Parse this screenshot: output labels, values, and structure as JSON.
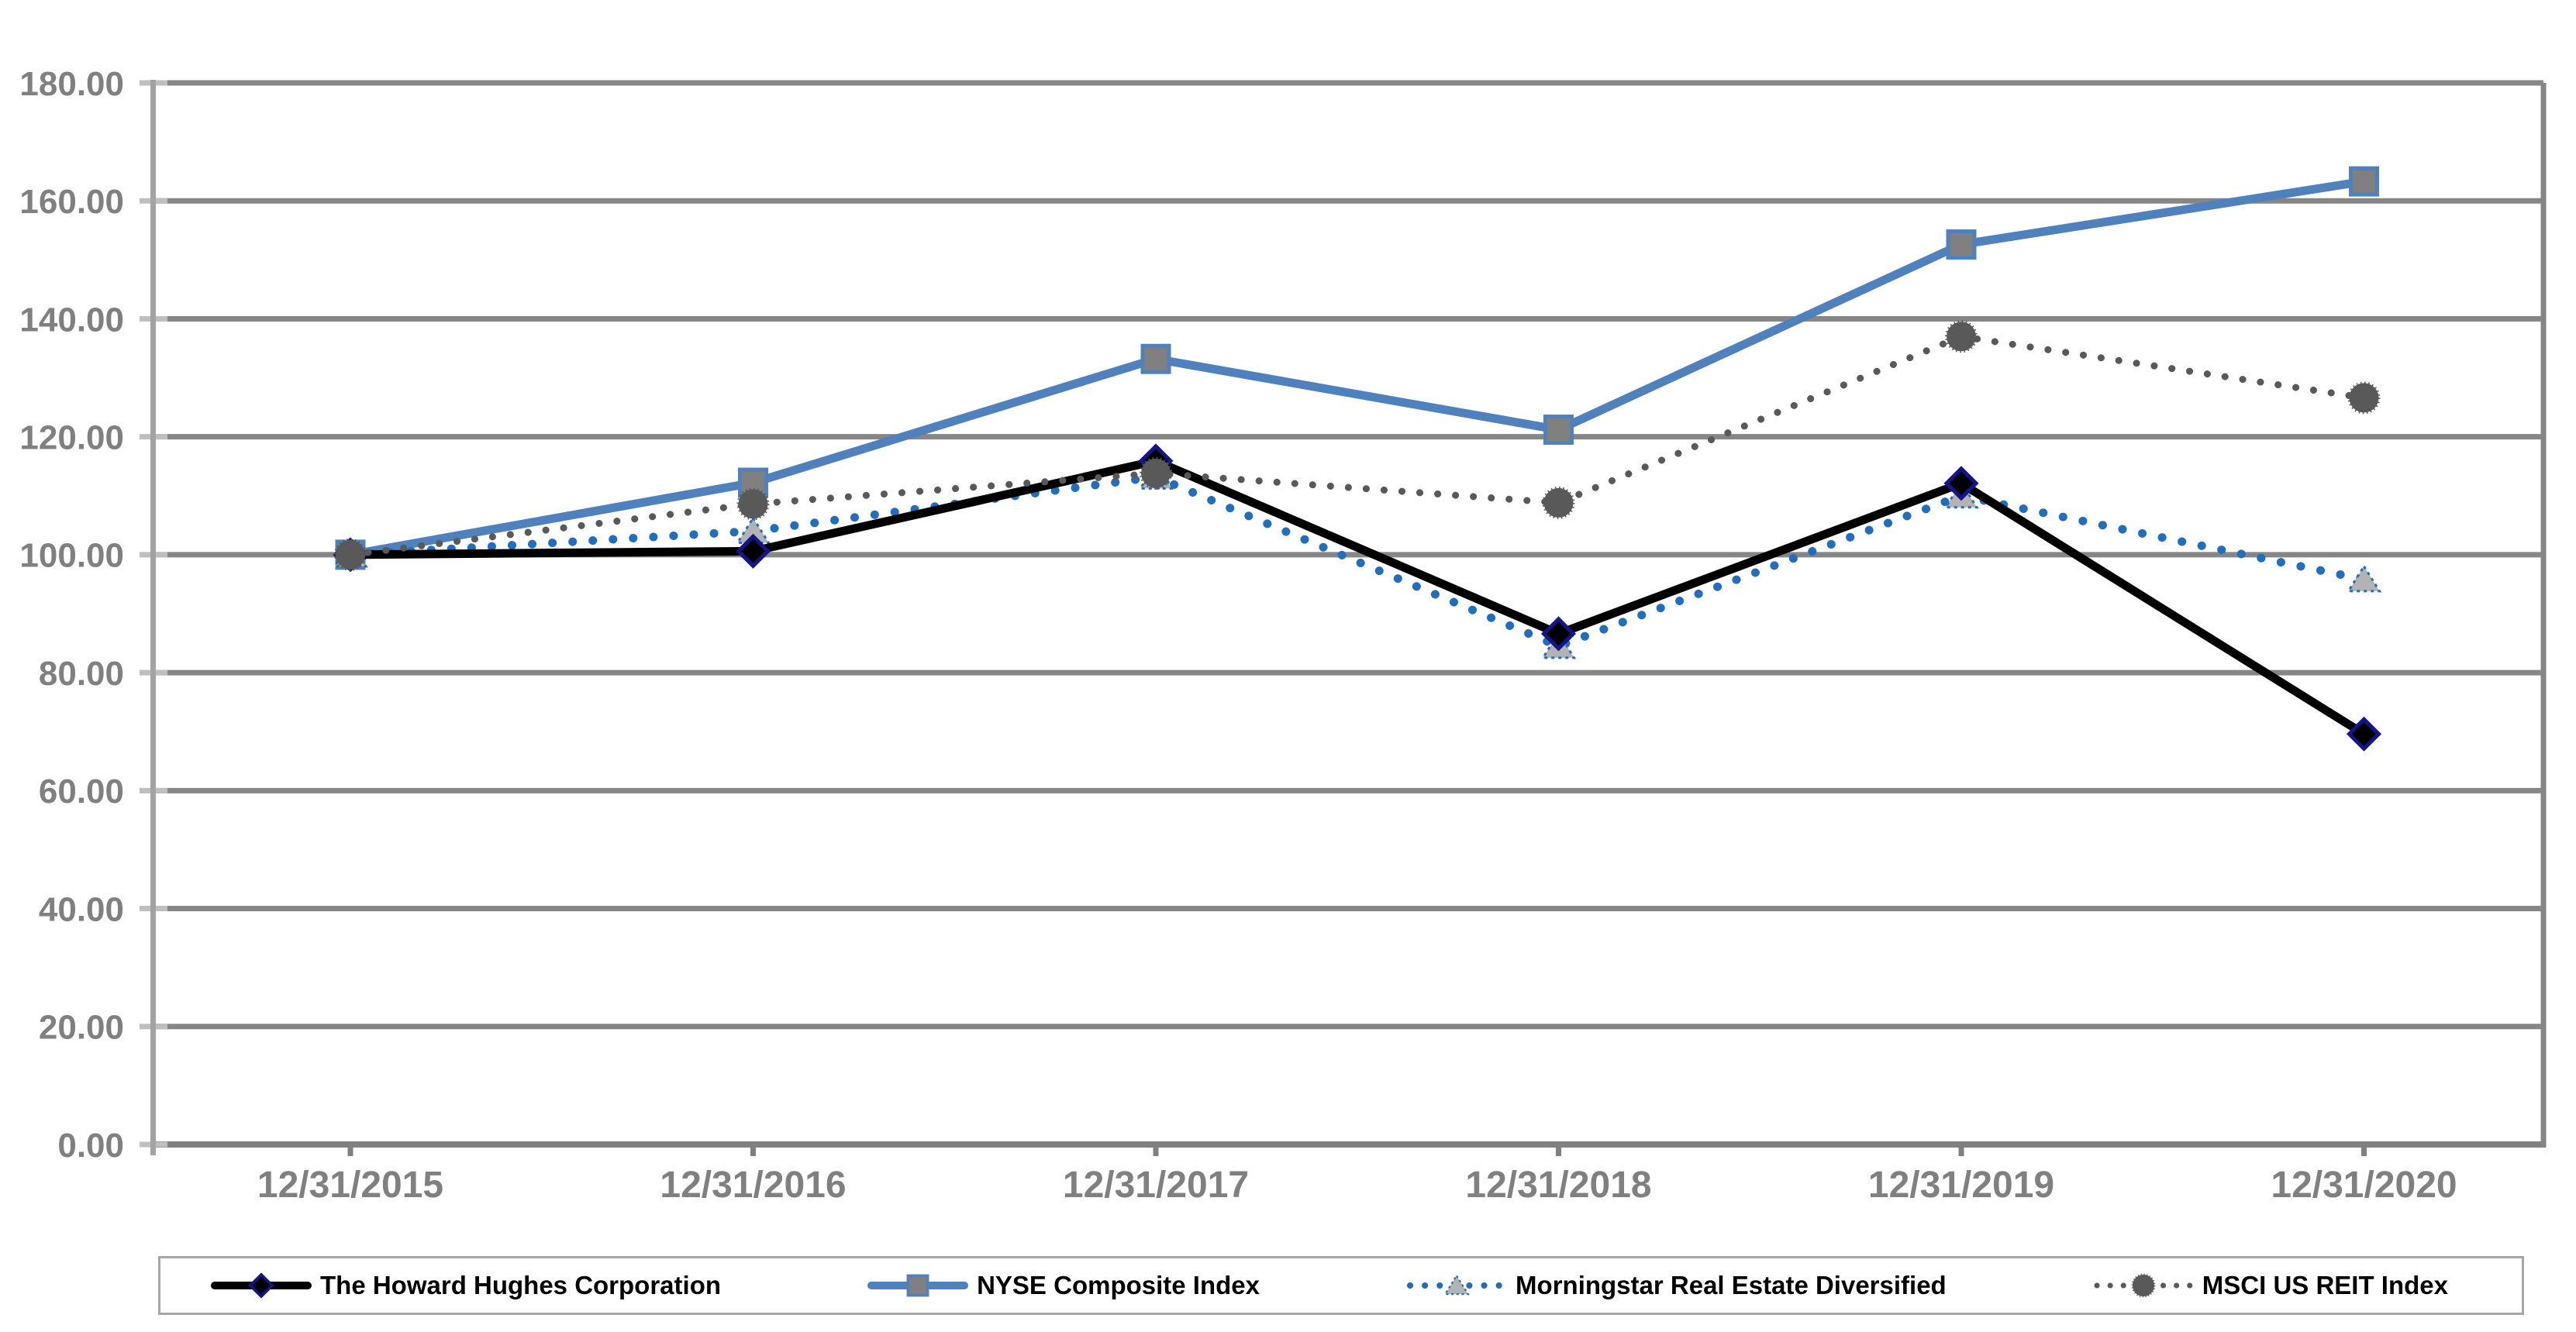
{
  "chart_data": {
    "type": "line",
    "title": "",
    "xlabel": "",
    "ylabel": "",
    "categories": [
      "12/31/2015",
      "12/31/2016",
      "12/31/2017",
      "12/31/2018",
      "12/31/2019",
      "12/31/2020"
    ],
    "series": [
      {
        "name": "The Howard Hughes Corporation",
        "values": [
          100.0,
          100.6,
          115.9,
          86.6,
          112.1,
          69.6
        ],
        "line_color": "#000000",
        "line_style": "solid",
        "marker": "diamond",
        "marker_fill": "#000000",
        "marker_stroke": "#14148C"
      },
      {
        "name": "NYSE Composite Index",
        "values": [
          100.0,
          112.2,
          133.2,
          121.2,
          152.6,
          163.3
        ],
        "line_color": "#4F81BD",
        "line_style": "solid",
        "marker": "square",
        "marker_fill": "#808080",
        "marker_stroke": "#4F81BD"
      },
      {
        "name": "Morningstar Real Estate Diversified",
        "values": [
          100.0,
          104.0,
          113.2,
          84.5,
          110.0,
          95.8
        ],
        "line_color": "#1F6EBF",
        "line_style": "dotted",
        "marker": "triangle",
        "marker_fill": "#B3B3B3",
        "marker_stroke": "#1F6EBF"
      },
      {
        "name": "MSCI US REIT Index",
        "values": [
          100.0,
          108.6,
          113.8,
          108.8,
          137.0,
          126.6
        ],
        "line_color": "#595959",
        "line_style": "dotted",
        "marker": "circle",
        "marker_fill": "#595959",
        "marker_stroke": "#595959"
      }
    ],
    "ylim": [
      0,
      180
    ],
    "ytick_step": 20,
    "ytick_decimals": 2,
    "grid": "horizontal-only",
    "gridline_color": "#868686",
    "axis_color": "#808080",
    "tick_color": "#BFBFBF",
    "label_color": "#808080",
    "legend_position": "bottom",
    "background": "#FFFFFF"
  }
}
